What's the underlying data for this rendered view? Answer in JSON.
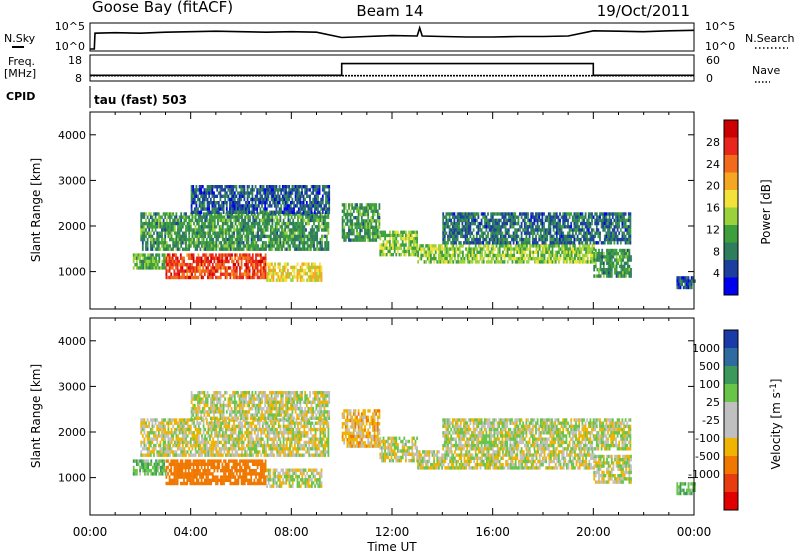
{
  "header": {
    "station": "Goose Bay (fitACF)",
    "beam": "Beam 14",
    "date": "19/Oct/2011"
  },
  "noise_panel": {
    "left_label": "N.Sky",
    "right_label": "N.Search",
    "left_ticks": [
      "10^5",
      "10^0"
    ],
    "right_ticks": [
      "10^5",
      "10^0"
    ],
    "series": [
      {
        "name": "N.Sky",
        "x": [
          0,
          0.17,
          0.2,
          1,
          2,
          3,
          4,
          5,
          6,
          7,
          8,
          9,
          10,
          11,
          12,
          13,
          13.1,
          13.2,
          14,
          15,
          16,
          17,
          18,
          19,
          20,
          21,
          22,
          23,
          24
        ],
        "y": [
          0.0,
          0.0,
          3.3,
          3.4,
          3.3,
          3.5,
          3.6,
          3.7,
          3.6,
          3.5,
          3.6,
          3.5,
          2.4,
          2.6,
          2.8,
          2.7,
          4.4,
          2.7,
          2.6,
          2.5,
          2.5,
          2.6,
          2.6,
          2.7,
          3.8,
          3.7,
          3.6,
          3.8,
          3.9
        ]
      }
    ],
    "ylim": [
      0,
      5
    ]
  },
  "freq_panel": {
    "left_label": "Freq.",
    "left_unit": "[MHz]",
    "right_label": "Nave",
    "left_ticks": [
      "18",
      "8"
    ],
    "right_ticks": [
      "60",
      "0"
    ],
    "freq_series": {
      "x": [
        0,
        24
      ],
      "y": [
        9.5,
        9.5
      ]
    },
    "nave_series": {
      "x": [
        0,
        10,
        10,
        20,
        20,
        24
      ],
      "y": [
        10,
        10,
        42,
        42,
        10,
        10
      ]
    }
  },
  "cpid_label": "CPID",
  "cpid_text": "tau (fast) 503",
  "power_panel": {
    "ylabel": "Slant Range [km]",
    "colorbar_label": "Power [dB]",
    "colorbar_ticks": [
      "28",
      "24",
      "20",
      "16",
      "12",
      "8",
      "4"
    ],
    "colors": [
      "#0000ee",
      "#1c3e9e",
      "#2e7d5c",
      "#3da03d",
      "#9bd23c",
      "#f2e23a",
      "#f5a623",
      "#f26a1b",
      "#e8261c",
      "#cc0000"
    ]
  },
  "velocity_panel": {
    "ylabel": "Slant Range [km]",
    "colorbar_label": "Velocity [m s^-1]",
    "colorbar_ticks": [
      "1000",
      "500",
      "100",
      "25",
      "-25",
      "-100",
      "-500",
      "-1000"
    ],
    "colors": [
      "#1a3aa8",
      "#2e6b9e",
      "#3b9a5a",
      "#69c44a",
      "#c0c0c0",
      "#c0c0c0",
      "#f0b400",
      "#f07800",
      "#e83c10",
      "#e00000"
    ]
  },
  "range_ticks": [
    "1000",
    "2000",
    "3000",
    "4000"
  ],
  "time_ticks": [
    "00:00",
    "04:00",
    "08:00",
    "12:00",
    "16:00",
    "20:00",
    "00:00"
  ],
  "xlabel": "Time UT",
  "chart_data": [
    {
      "type": "heatmap",
      "quantity": "Power",
      "unit": "dB",
      "xlabel": "Time UT",
      "ylabel": "Slant Range [km]",
      "xlim": [
        0,
        24
      ],
      "ylim": [
        180,
        4500
      ],
      "clim": [
        0,
        32
      ],
      "x_unit": "hours UT",
      "bands": [
        {
          "t0": 1.7,
          "t1": 3.0,
          "r0": 1100,
          "r1": 1400,
          "value": 12
        },
        {
          "t0": 3.0,
          "t1": 7.0,
          "r0": 900,
          "r1": 1400,
          "value": 26
        },
        {
          "t0": 7.0,
          "t1": 9.2,
          "r0": 800,
          "r1": 1200,
          "value": 18
        },
        {
          "t0": 2.0,
          "t1": 9.5,
          "r0": 1500,
          "r1": 2300,
          "value": 10
        },
        {
          "t0": 4.0,
          "t1": 9.5,
          "r0": 2300,
          "r1": 2900,
          "value": 6
        },
        {
          "t0": 10.0,
          "t1": 11.5,
          "r0": 1700,
          "r1": 2500,
          "value": 10
        },
        {
          "t0": 11.5,
          "t1": 13.0,
          "r0": 1400,
          "r1": 1900,
          "value": 14
        },
        {
          "t0": 13.0,
          "t1": 20.0,
          "r0": 1200,
          "r1": 1600,
          "value": 14
        },
        {
          "t0": 14.0,
          "t1": 21.5,
          "r0": 1600,
          "r1": 2300,
          "value": 7
        },
        {
          "t0": 20.0,
          "t1": 21.5,
          "r0": 900,
          "r1": 1500,
          "value": 10
        },
        {
          "t0": 23.3,
          "t1": 24.0,
          "r0": 650,
          "r1": 900,
          "value": 6
        }
      ]
    },
    {
      "type": "heatmap",
      "quantity": "Velocity",
      "unit": "m s^-1",
      "xlabel": "Time UT",
      "ylabel": "Slant Range [km]",
      "xlim": [
        0,
        24
      ],
      "ylim": [
        180,
        4500
      ],
      "clim": [
        -1250,
        1250
      ],
      "x_unit": "hours UT",
      "bands": [
        {
          "t0": 1.7,
          "t1": 3.0,
          "r0": 1100,
          "r1": 1400,
          "value": 80
        },
        {
          "t0": 3.0,
          "t1": 7.0,
          "r0": 900,
          "r1": 1400,
          "value": -200
        },
        {
          "t0": 7.0,
          "t1": 9.2,
          "r0": 800,
          "r1": 1200,
          "value": 0
        },
        {
          "t0": 2.0,
          "t1": 9.5,
          "r0": 1500,
          "r1": 2300,
          "value": -10
        },
        {
          "t0": 4.0,
          "t1": 9.5,
          "r0": 2300,
          "r1": 2900,
          "value": 0
        },
        {
          "t0": 10.0,
          "t1": 11.5,
          "r0": 1700,
          "r1": 2500,
          "value": -60
        },
        {
          "t0": 11.5,
          "t1": 13.0,
          "r0": 1400,
          "r1": 1900,
          "value": 0
        },
        {
          "t0": 13.0,
          "t1": 20.0,
          "r0": 1200,
          "r1": 1600,
          "value": 0
        },
        {
          "t0": 14.0,
          "t1": 21.5,
          "r0": 1600,
          "r1": 2300,
          "value": 10
        },
        {
          "t0": 20.0,
          "t1": 21.5,
          "r0": 900,
          "r1": 1500,
          "value": 0
        },
        {
          "t0": 23.3,
          "t1": 24.0,
          "r0": 650,
          "r1": 900,
          "value": 80
        }
      ]
    }
  ]
}
